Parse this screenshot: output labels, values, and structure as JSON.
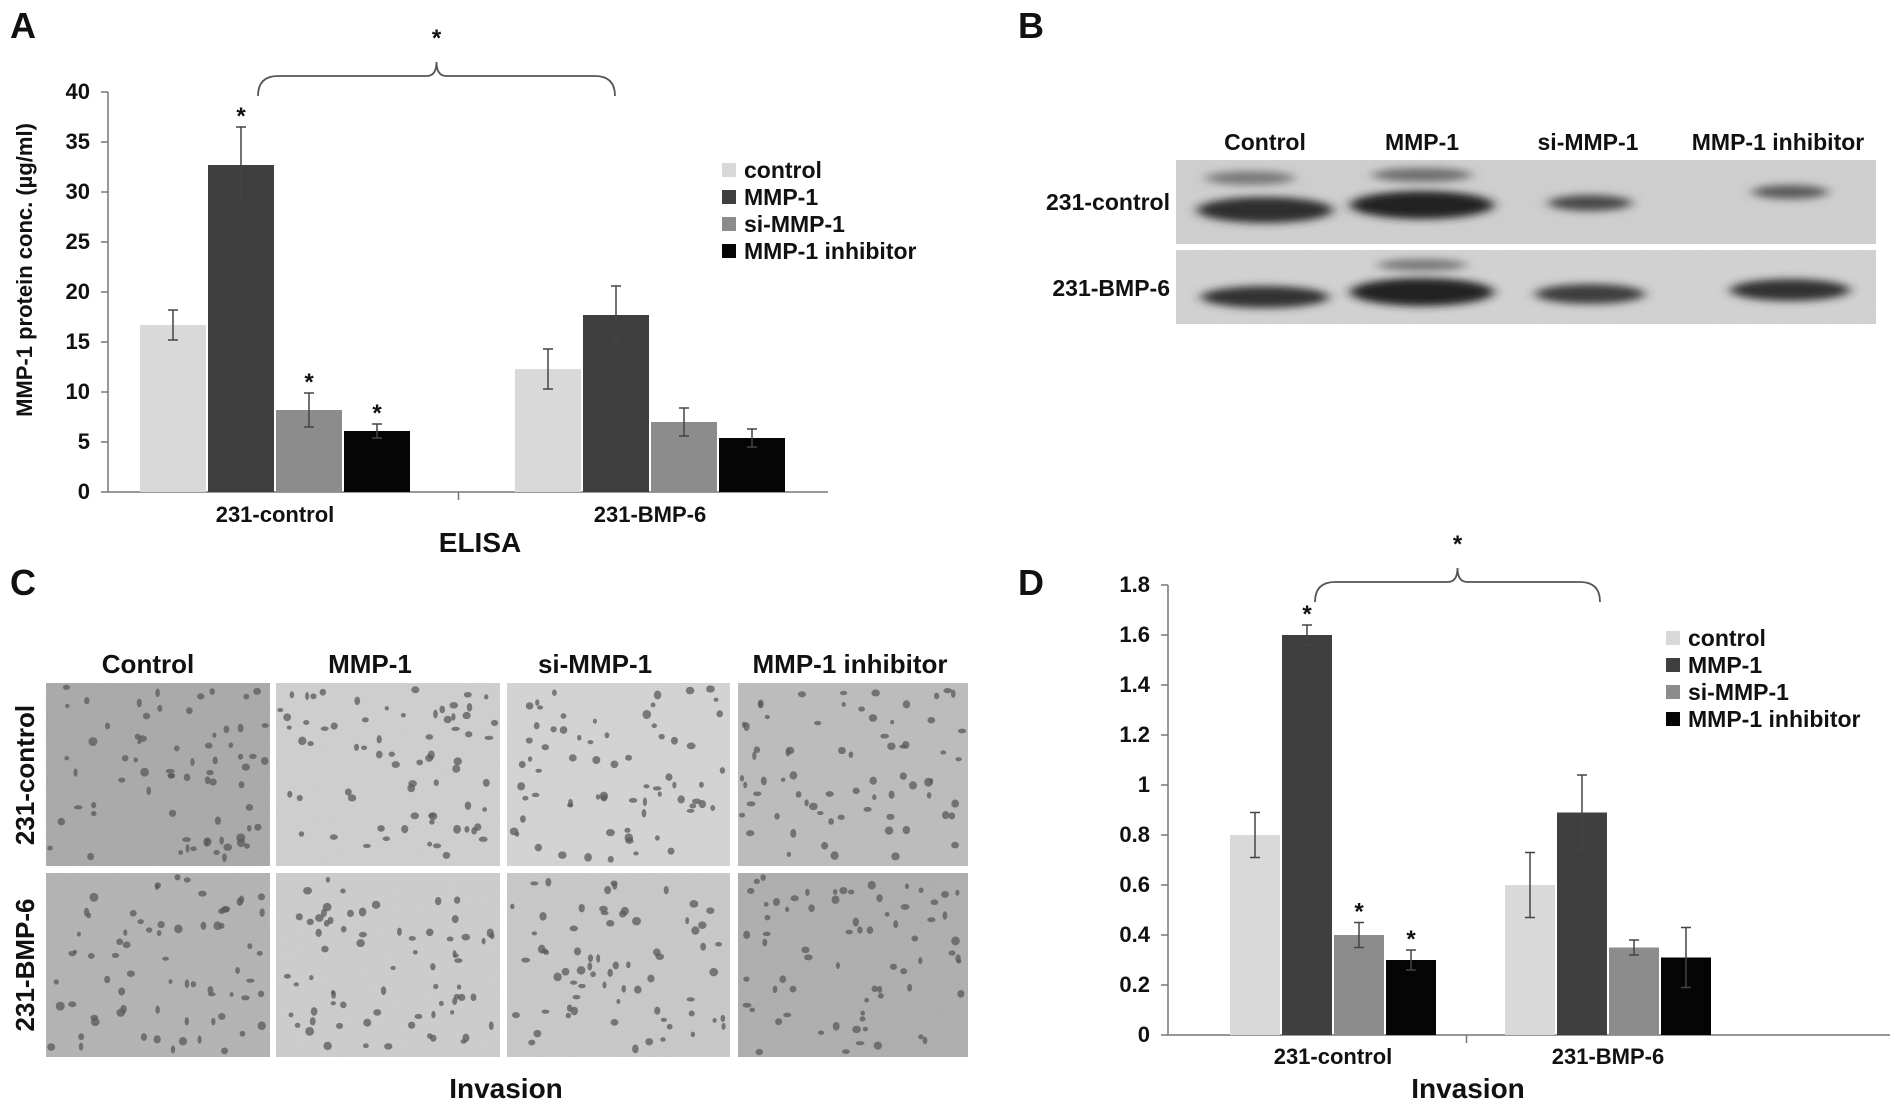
{
  "panels": {
    "A": {
      "letter": "A"
    },
    "B": {
      "letter": "B"
    },
    "C": {
      "letter": "C"
    },
    "D": {
      "letter": "D"
    }
  },
  "colors": {
    "control": "#d9d9d9",
    "mmp1": "#3f3f3f",
    "si_mmp1": "#8c8c8c",
    "inhibitor": "#050505"
  },
  "chart_data": [
    {
      "panel": "A",
      "type": "bar",
      "title": "",
      "xlabel": "ELISA",
      "ylabel": "MMP-1 protein conc. (µg/ml)",
      "ylim": [
        0,
        40
      ],
      "yticks": [
        0,
        5,
        10,
        15,
        20,
        25,
        30,
        35,
        40
      ],
      "categories": [
        "231-control",
        "231-BMP-6"
      ],
      "legend_position": "right",
      "series": [
        {
          "name": "control",
          "values": [
            16.7,
            12.3
          ],
          "errors": [
            1.5,
            2.0
          ],
          "significant": [
            false,
            false
          ]
        },
        {
          "name": "MMP-1",
          "values": [
            32.7,
            17.7
          ],
          "errors": [
            3.8,
            2.9
          ],
          "significant": [
            true,
            false
          ]
        },
        {
          "name": "si-MMP-1",
          "values": [
            8.2,
            7.0
          ],
          "errors": [
            1.7,
            1.4
          ],
          "significant": [
            true,
            false
          ]
        },
        {
          "name": "MMP-1 inhibitor",
          "values": [
            6.1,
            5.4
          ],
          "errors": [
            0.7,
            0.9
          ],
          "significant": [
            true,
            false
          ]
        }
      ],
      "bracket_mark": "*"
    },
    {
      "panel": "D",
      "type": "bar",
      "title": "",
      "xlabel": "Invasion",
      "ylabel": "",
      "ylim": [
        0,
        1.8
      ],
      "yticks": [
        "0",
        "0.2",
        "0.4",
        "0.6",
        "0.8",
        "1",
        "1.2",
        "1.4",
        "1.6",
        "1.8"
      ],
      "categories": [
        "231-control",
        "231-BMP-6"
      ],
      "legend_position": "right",
      "series": [
        {
          "name": "control",
          "values": [
            0.8,
            0.6
          ],
          "errors": [
            0.09,
            0.13
          ],
          "significant": [
            false,
            false
          ]
        },
        {
          "name": "MMP-1",
          "values": [
            1.6,
            0.89
          ],
          "errors": [
            0.04,
            0.15
          ],
          "significant": [
            true,
            false
          ]
        },
        {
          "name": "si-MMP-1",
          "values": [
            0.4,
            0.35
          ],
          "errors": [
            0.05,
            0.03
          ],
          "significant": [
            true,
            false
          ]
        },
        {
          "name": "MMP-1 inhibitor",
          "values": [
            0.3,
            0.31
          ],
          "errors": [
            0.04,
            0.12
          ],
          "significant": [
            true,
            false
          ]
        }
      ],
      "bracket_mark": "*"
    }
  ],
  "blot": {
    "columns": [
      "Control",
      "MMP-1",
      "si-MMP-1",
      "MMP-1 inhibitor"
    ],
    "rows": [
      "231-control",
      "231-BMP-6"
    ]
  },
  "micrographs": {
    "columns": [
      "Control",
      "MMP-1",
      "si-MMP-1",
      "MMP-1 inhibitor"
    ],
    "rows": [
      "231-control",
      "231-BMP-6"
    ],
    "xlabel": "Invasion"
  }
}
